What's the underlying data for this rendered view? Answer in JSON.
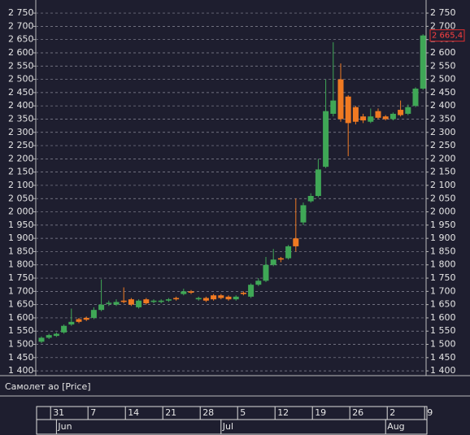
{
  "chart_data": {
    "type": "candlestick",
    "series_name": "Самолет ао [Price]",
    "up_color": "#3fa756",
    "down_color": "#f07a22",
    "grid": true,
    "ylim": [
      1382,
      2784
    ],
    "yticks": [
      {
        "value": 1400,
        "label": "1 400"
      },
      {
        "value": 1450,
        "label": "1 450"
      },
      {
        "value": 1500,
        "label": "1 500"
      },
      {
        "value": 1550,
        "label": "1 550"
      },
      {
        "value": 1600,
        "label": "1 600"
      },
      {
        "value": 1650,
        "label": "1 650"
      },
      {
        "value": 1700,
        "label": "1 700"
      },
      {
        "value": 1750,
        "label": "1 750"
      },
      {
        "value": 1800,
        "label": "1 800"
      },
      {
        "value": 1850,
        "label": "1 850"
      },
      {
        "value": 1900,
        "label": "1 900"
      },
      {
        "value": 1950,
        "label": "1 950"
      },
      {
        "value": 2000,
        "label": "2 000"
      },
      {
        "value": 2050,
        "label": "2 050"
      },
      {
        "value": 2100,
        "label": "2 100"
      },
      {
        "value": 2150,
        "label": "2 150"
      },
      {
        "value": 2200,
        "label": "2 200"
      },
      {
        "value": 2250,
        "label": "2 250"
      },
      {
        "value": 2300,
        "label": "2 300"
      },
      {
        "value": 2350,
        "label": "2 350"
      },
      {
        "value": 2400,
        "label": "2 400"
      },
      {
        "value": 2450,
        "label": "2 450"
      },
      {
        "value": 2500,
        "label": "2 500"
      },
      {
        "value": 2550,
        "label": "2 550"
      },
      {
        "value": 2600,
        "label": "2 600"
      },
      {
        "value": 2650,
        "label": "2 650"
      },
      {
        "value": 2700,
        "label": "2 700"
      },
      {
        "value": 2750,
        "label": "2 750"
      }
    ],
    "categories": [
      null,
      "31",
      null,
      null,
      null,
      null,
      "7",
      null,
      null,
      null,
      null,
      "14",
      null,
      null,
      null,
      null,
      "21",
      null,
      null,
      null,
      null,
      "28",
      null,
      null,
      null,
      null,
      "5",
      null,
      null,
      null,
      null,
      "12",
      null,
      null,
      null,
      null,
      "19",
      null,
      null,
      null,
      null,
      "26",
      null,
      null,
      null,
      null,
      "2",
      null,
      null,
      null,
      null,
      "9"
    ],
    "months": [
      null,
      null,
      "Jun",
      null,
      null,
      null,
      null,
      null,
      null,
      null,
      null,
      null,
      null,
      null,
      null,
      null,
      null,
      null,
      null,
      null,
      null,
      null,
      null,
      null,
      "Jul",
      null,
      null,
      null,
      null,
      null,
      null,
      null,
      null,
      null,
      null,
      null,
      null,
      null,
      null,
      null,
      null,
      null,
      null,
      null,
      null,
      null,
      "Aug",
      null,
      null,
      null,
      null,
      null
    ],
    "open": [
      1510,
      1525,
      1532,
      1545,
      1575,
      1595,
      1600,
      1600,
      1630,
      1655,
      1650,
      1665,
      1670,
      1640,
      1670,
      1660,
      1660,
      1665,
      1675,
      1690,
      1700,
      1670,
      1675,
      1685,
      1685,
      1680,
      1670,
      1695,
      1680,
      1725,
      1740,
      1800,
      1825,
      1825,
      1900,
      1960,
      2040,
      2060,
      2170,
      2370,
      2500,
      2435,
      2395,
      2360,
      2340,
      2380,
      2360,
      2350,
      2385,
      2370,
      2400,
      2465
    ],
    "close": [
      1525,
      1535,
      1540,
      1570,
      1585,
      1585,
      1593,
      1630,
      1650,
      1657,
      1660,
      1660,
      1650,
      1665,
      1655,
      1665,
      1665,
      1670,
      1670,
      1700,
      1695,
      1675,
      1665,
      1670,
      1675,
      1670,
      1680,
      1690,
      1725,
      1740,
      1800,
      1820,
      1820,
      1870,
      1870,
      2025,
      2060,
      2160,
      2380,
      2420,
      2350,
      2335,
      2340,
      2345,
      2360,
      2355,
      2350,
      2370,
      2365,
      2395,
      2465,
      2665.4
    ],
    "high": [
      1530,
      1540,
      1545,
      1575,
      1635,
      1600,
      1605,
      1640,
      1745,
      1665,
      1670,
      1715,
      1675,
      1670,
      1675,
      1670,
      1670,
      1675,
      1680,
      1710,
      1705,
      1680,
      1680,
      1690,
      1690,
      1685,
      1685,
      1700,
      1730,
      1750,
      1830,
      1860,
      1830,
      1875,
      2050,
      2035,
      2070,
      2200,
      2500,
      2640,
      2560,
      2440,
      2400,
      2370,
      2390,
      2390,
      2365,
      2375,
      2420,
      2405,
      2470,
      2670
    ],
    "low": [
      1505,
      1520,
      1528,
      1540,
      1570,
      1580,
      1588,
      1595,
      1625,
      1645,
      1645,
      1655,
      1645,
      1635,
      1650,
      1655,
      1655,
      1660,
      1665,
      1685,
      1690,
      1665,
      1660,
      1665,
      1670,
      1665,
      1665,
      1685,
      1675,
      1720,
      1735,
      1795,
      1810,
      1820,
      1850,
      1950,
      2035,
      2055,
      2165,
      2360,
      2340,
      2210,
      2330,
      2335,
      2335,
      2350,
      2345,
      2345,
      2360,
      2365,
      2395,
      2460
    ],
    "last_close_label": "2 665,4"
  }
}
